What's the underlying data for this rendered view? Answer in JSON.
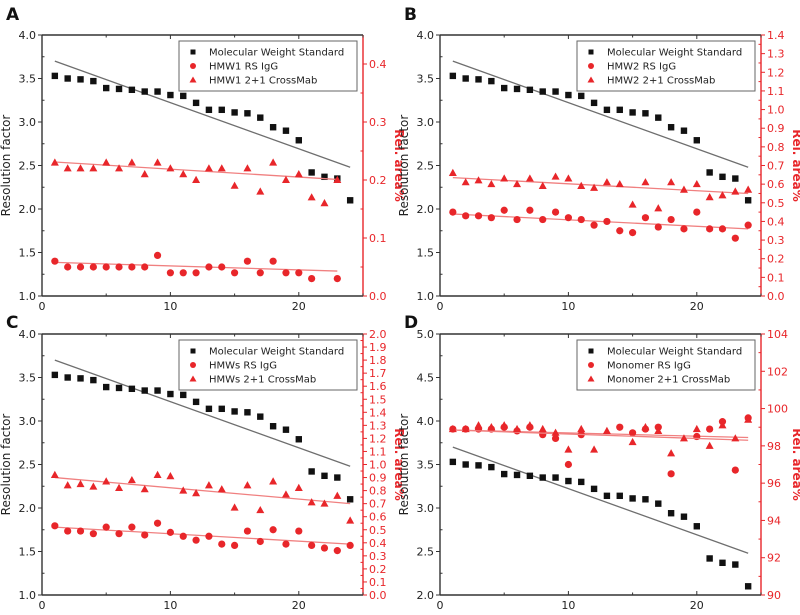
{
  "colors": {
    "standard": "#111111",
    "standard_fit": "#6e6e6e",
    "sample": "#e8262a",
    "sample_fit": "#f08080",
    "right_axis": "#e8262a"
  },
  "chart_data": [
    {
      "panel": "A",
      "type": "scatter",
      "title": "",
      "xlabel": "",
      "ylabel": "Resolution factor",
      "y2label": "Rel. area%",
      "xlim": [
        0,
        25
      ],
      "ylim": [
        1.0,
        4.0
      ],
      "y2lim": [
        0.0,
        0.45
      ],
      "xticks": [
        0,
        10,
        20
      ],
      "yticks": [
        "1.0",
        "1.5",
        "2.0",
        "2.5",
        "3.0",
        "3.5",
        "4.0"
      ],
      "y2ticks": [
        "0.0",
        "0.1",
        "0.2",
        "0.3",
        "0.4"
      ],
      "legend": {
        "placement": "top-right",
        "entries": [
          "Molecular Weight Standard",
          "HMW1 RS IgG",
          "HMW1 2+1 CrossMab"
        ]
      },
      "x": [
        1,
        2,
        3,
        4,
        5,
        6,
        7,
        8,
        9,
        10,
        11,
        12,
        13,
        14,
        15,
        16,
        17,
        18,
        19,
        20,
        21,
        22,
        23,
        24
      ],
      "series": [
        {
          "name": "Molecular Weight Standard",
          "axis": "left",
          "marker": "square",
          "values": [
            3.53,
            3.5,
            3.49,
            3.47,
            3.39,
            3.38,
            3.37,
            3.35,
            3.35,
            3.31,
            3.3,
            3.22,
            3.14,
            3.14,
            3.11,
            3.1,
            3.05,
            2.94,
            2.9,
            2.79,
            2.42,
            2.37,
            2.35,
            2.1
          ],
          "fit": [
            [
              1,
              3.7
            ],
            [
              24,
              2.48
            ]
          ]
        },
        {
          "name": "HMW1 RS IgG",
          "axis": "right",
          "marker": "circle",
          "values": [
            0.06,
            0.05,
            0.05,
            0.05,
            0.05,
            0.05,
            0.05,
            0.05,
            0.07,
            0.04,
            0.04,
            0.04,
            0.05,
            0.05,
            0.04,
            0.06,
            0.04,
            0.06,
            0.04,
            0.04,
            0.03,
            null,
            0.03,
            null
          ],
          "fit": [
            [
              1,
              0.058
            ],
            [
              23,
              0.043
            ]
          ]
        },
        {
          "name": "HMW1 2+1 CrossMab",
          "axis": "right",
          "marker": "triangle",
          "values": [
            0.23,
            0.22,
            0.22,
            0.22,
            0.23,
            0.22,
            0.23,
            0.21,
            0.23,
            0.22,
            0.21,
            0.2,
            0.22,
            0.22,
            0.19,
            0.22,
            0.18,
            0.23,
            0.2,
            0.21,
            0.17,
            0.16,
            0.2,
            null
          ],
          "fit": [
            [
              1,
              0.231
            ],
            [
              23,
              0.201
            ]
          ]
        }
      ]
    },
    {
      "panel": "B",
      "type": "scatter",
      "title": "",
      "xlabel": "",
      "ylabel": "Resolution factor",
      "y2label": "Rel. area%",
      "xlim": [
        0,
        25
      ],
      "ylim": [
        1.0,
        4.0
      ],
      "y2lim": [
        0.0,
        1.4
      ],
      "xticks": [
        0,
        10,
        20
      ],
      "yticks": [
        "1.0",
        "1.5",
        "2.0",
        "2.5",
        "3.0",
        "3.5",
        "4.0"
      ],
      "y2ticks": [
        "0.0",
        "0.1",
        "0.2",
        "0.3",
        "0.4",
        "0.5",
        "0.6",
        "0.7",
        "0.8",
        "0.9",
        "1.0",
        "1.1",
        "1.2",
        "1.3",
        "1.4"
      ],
      "legend": {
        "placement": "top-right",
        "entries": [
          "Molecular Weight Standard",
          "HMW2 RS IgG",
          "HMW2 2+1 CrossMab"
        ]
      },
      "x": [
        1,
        2,
        3,
        4,
        5,
        6,
        7,
        8,
        9,
        10,
        11,
        12,
        13,
        14,
        15,
        16,
        17,
        18,
        19,
        20,
        21,
        22,
        23,
        24
      ],
      "series": [
        {
          "name": "Molecular Weight Standard",
          "axis": "left",
          "marker": "square",
          "values": [
            3.53,
            3.5,
            3.49,
            3.47,
            3.39,
            3.38,
            3.37,
            3.35,
            3.35,
            3.31,
            3.3,
            3.22,
            3.14,
            3.14,
            3.11,
            3.1,
            3.05,
            2.94,
            2.9,
            2.79,
            2.42,
            2.37,
            2.35,
            2.1
          ],
          "fit": [
            [
              1,
              3.7
            ],
            [
              24,
              2.48
            ]
          ]
        },
        {
          "name": "HMW2 RS IgG",
          "axis": "right",
          "marker": "circle",
          "values": [
            0.45,
            0.43,
            0.43,
            0.42,
            0.46,
            0.41,
            0.46,
            0.41,
            0.45,
            0.42,
            0.41,
            0.38,
            0.4,
            0.35,
            0.34,
            0.42,
            0.37,
            0.41,
            0.36,
            0.45,
            0.36,
            0.36,
            0.31,
            0.38
          ],
          "fit": [
            [
              1,
              0.44
            ],
            [
              24,
              0.36
            ]
          ]
        },
        {
          "name": "HMW2 2+1 CrossMab",
          "axis": "right",
          "marker": "triangle",
          "values": [
            0.66,
            0.61,
            0.62,
            0.6,
            0.63,
            0.6,
            0.63,
            0.59,
            0.64,
            0.63,
            0.59,
            0.58,
            0.61,
            0.6,
            0.49,
            0.61,
            0.47,
            0.61,
            0.57,
            0.6,
            0.53,
            0.54,
            0.56,
            0.57
          ],
          "fit": [
            [
              1,
              0.635
            ],
            [
              24,
              0.55
            ]
          ]
        }
      ]
    },
    {
      "panel": "C",
      "type": "scatter",
      "title": "",
      "xlabel": "",
      "ylabel": "Resolution factor",
      "y2label": "Rel. area%",
      "xlim": [
        0,
        25
      ],
      "ylim": [
        1.0,
        4.0
      ],
      "y2lim": [
        0.0,
        2.0
      ],
      "xticks": [
        0,
        10,
        20
      ],
      "yticks": [
        "1.0",
        "1.5",
        "2.0",
        "2.5",
        "3.0",
        "3.5",
        "4.0"
      ],
      "y2ticks": [
        "0.0",
        "0.1",
        "0.2",
        "0.3",
        "0.4",
        "0.5",
        "0.6",
        "0.7",
        "0.8",
        "0.9",
        "1.0",
        "1.1",
        "1.2",
        "1.3",
        "1.4",
        "1.5",
        "1.6",
        "1.7",
        "1.8",
        "1.9",
        "2.0"
      ],
      "legend": {
        "placement": "top-right",
        "entries": [
          "Molecular Weight Standard",
          "HMWs RS IgG",
          "HMWs 2+1 CrossMab"
        ]
      },
      "x": [
        1,
        2,
        3,
        4,
        5,
        6,
        7,
        8,
        9,
        10,
        11,
        12,
        13,
        14,
        15,
        16,
        17,
        18,
        19,
        20,
        21,
        22,
        23,
        24
      ],
      "series": [
        {
          "name": "Molecular Weight Standard",
          "axis": "left",
          "marker": "square",
          "values": [
            3.53,
            3.5,
            3.49,
            3.47,
            3.39,
            3.38,
            3.37,
            3.35,
            3.35,
            3.31,
            3.3,
            3.22,
            3.14,
            3.14,
            3.11,
            3.1,
            3.05,
            2.94,
            2.9,
            2.79,
            2.42,
            2.37,
            2.35,
            2.1
          ],
          "fit": [
            [
              1,
              3.7
            ],
            [
              24,
              2.48
            ]
          ]
        },
        {
          "name": "HMWs RS IgG",
          "axis": "right",
          "marker": "circle",
          "values": [
            0.53,
            0.49,
            0.49,
            0.47,
            0.52,
            0.47,
            0.52,
            0.46,
            0.55,
            0.48,
            0.45,
            0.42,
            0.45,
            0.39,
            0.38,
            0.49,
            0.41,
            0.5,
            0.39,
            0.49,
            0.38,
            0.36,
            0.34,
            0.38
          ],
          "fit": [
            [
              1,
              0.52
            ],
            [
              24,
              0.39
            ]
          ]
        },
        {
          "name": "HMWs 2+1 CrossMab",
          "axis": "right",
          "marker": "triangle",
          "values": [
            0.92,
            0.84,
            0.85,
            0.83,
            0.87,
            0.82,
            0.88,
            0.81,
            0.92,
            0.91,
            0.8,
            0.78,
            0.84,
            0.81,
            0.67,
            0.84,
            0.65,
            0.87,
            0.77,
            0.82,
            0.71,
            0.7,
            0.76,
            0.57
          ],
          "fit": [
            [
              1,
              0.9
            ],
            [
              24,
              0.7
            ]
          ]
        }
      ]
    },
    {
      "panel": "D",
      "type": "scatter",
      "title": "",
      "xlabel": "",
      "ylabel": "Resolution factor",
      "y2label": "Rel. area%",
      "xlim": [
        0,
        25
      ],
      "ylim": [
        2.0,
        5.0
      ],
      "y2lim": [
        90,
        104
      ],
      "xticks": [
        0,
        10,
        20
      ],
      "yticks": [
        "2.0",
        "2.5",
        "3.0",
        "3.5",
        "4.0",
        "4.5",
        "5.0"
      ],
      "y2ticks": [
        "90",
        "92",
        "94",
        "96",
        "98",
        "100",
        "102",
        "104"
      ],
      "legend": {
        "placement": "top-right",
        "entries": [
          "Molecular Weight Standard",
          "Monomer RS IgG",
          "Monomer 2+1 CrossMab"
        ]
      },
      "x": [
        1,
        2,
        3,
        4,
        5,
        6,
        7,
        8,
        9,
        10,
        11,
        12,
        13,
        14,
        15,
        16,
        17,
        18,
        19,
        20,
        21,
        22,
        23,
        24
      ],
      "series": [
        {
          "name": "Molecular Weight Standard",
          "axis": "left",
          "marker": "square",
          "values": [
            3.53,
            3.5,
            3.49,
            3.47,
            3.39,
            3.38,
            3.37,
            3.35,
            3.35,
            3.31,
            3.3,
            3.22,
            3.14,
            3.14,
            3.11,
            3.1,
            3.05,
            2.94,
            2.9,
            2.79,
            2.42,
            2.37,
            2.35,
            2.1
          ],
          "fit": [
            [
              1,
              3.7
            ],
            [
              24,
              2.48
            ]
          ]
        },
        {
          "name": "Monomer RS IgG",
          "axis": "right",
          "marker": "circle",
          "values": [
            98.9,
            98.9,
            98.9,
            98.9,
            99.0,
            98.8,
            99.0,
            98.6,
            98.4,
            97.0,
            98.6,
            null,
            null,
            99.0,
            98.7,
            98.9,
            99.0,
            96.5,
            null,
            98.5,
            98.9,
            99.3,
            96.7,
            99.5
          ],
          "fit": [
            [
              1,
              98.85
            ],
            [
              24,
              98.45
            ]
          ]
        },
        {
          "name": "Monomer 2+1 CrossMab",
          "axis": "right",
          "marker": "triangle",
          "values": [
            98.9,
            98.9,
            99.1,
            99.0,
            99.1,
            98.9,
            99.1,
            98.9,
            98.7,
            97.8,
            98.9,
            97.8,
            98.8,
            null,
            98.2,
            99.0,
            98.8,
            97.6,
            98.4,
            98.9,
            98.0,
            99.1,
            98.4,
            99.4
          ],
          "fit": [
            [
              1,
              98.85
            ],
            [
              24,
              98.3
            ]
          ]
        }
      ]
    }
  ]
}
